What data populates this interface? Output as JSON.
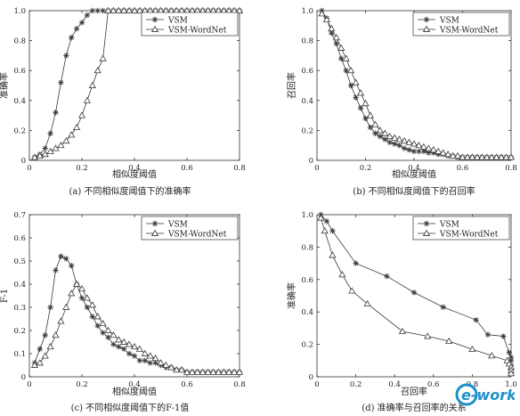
{
  "colors": {
    "vsm": "#3a3a3a",
    "wordnet": "#3a3a3a",
    "axis": "#333333",
    "watermark": "#1f8fc9"
  },
  "watermark": {
    "text": "e-works",
    "icon": "e-works-logo"
  },
  "chart_data": [
    {
      "type": "line",
      "caption": "(a) 不同相似度阈值下的准确率",
      "xlabel": "相似度阈值",
      "ylabel": "准确率",
      "xlim": [
        0,
        0.8
      ],
      "ylim": [
        0,
        1
      ],
      "xticks": [
        0,
        0.2,
        0.4,
        0.6,
        0.8
      ],
      "yticks": [
        0,
        0.2,
        0.4,
        0.6,
        0.8,
        1
      ],
      "xtick_labels": [
        "0",
        "0.2",
        "0.4",
        "0.6",
        "0.8"
      ],
      "ytick_labels": [
        "0",
        "0.2",
        "0.4",
        "0.6",
        "0.8",
        "1.0"
      ],
      "legend": "top-right",
      "series": [
        {
          "name": "VSM",
          "marker": "star",
          "x": [
            0.02,
            0.04,
            0.06,
            0.08,
            0.1,
            0.12,
            0.14,
            0.16,
            0.18,
            0.2,
            0.22,
            0.24,
            0.26,
            0.28,
            0.3,
            0.32,
            0.34,
            0.36,
            0.38,
            0.4,
            0.42,
            0.44,
            0.46,
            0.48,
            0.5,
            0.52,
            0.54,
            0.56,
            0.58,
            0.6,
            0.62,
            0.64,
            0.66,
            0.68,
            0.7,
            0.72,
            0.74,
            0.76,
            0.78,
            0.8
          ],
          "y": [
            0.02,
            0.04,
            0.08,
            0.18,
            0.32,
            0.52,
            0.7,
            0.82,
            0.88,
            0.92,
            0.97,
            1,
            1,
            1,
            1,
            1,
            1,
            1,
            1,
            1,
            1,
            1,
            1,
            1,
            1,
            1,
            1,
            1,
            1,
            1,
            1,
            1,
            1,
            1,
            1,
            1,
            1,
            1,
            1,
            1
          ]
        },
        {
          "name": "VSM-WordNet",
          "marker": "triangle",
          "x": [
            0.02,
            0.04,
            0.06,
            0.08,
            0.1,
            0.12,
            0.14,
            0.16,
            0.18,
            0.2,
            0.22,
            0.24,
            0.26,
            0.28,
            0.3,
            0.32,
            0.34,
            0.36,
            0.38,
            0.4,
            0.42,
            0.44,
            0.46,
            0.48,
            0.5,
            0.52,
            0.54,
            0.56,
            0.58,
            0.6,
            0.62,
            0.64,
            0.66,
            0.68,
            0.7,
            0.72,
            0.74,
            0.76,
            0.78,
            0.8
          ],
          "y": [
            0.02,
            0.03,
            0.04,
            0.06,
            0.08,
            0.1,
            0.13,
            0.17,
            0.22,
            0.3,
            0.4,
            0.5,
            0.6,
            0.68,
            1,
            1,
            1,
            1,
            1,
            1,
            1,
            1,
            1,
            1,
            1,
            1,
            1,
            1,
            1,
            1,
            1,
            1,
            1,
            1,
            1,
            1,
            1,
            1,
            1,
            1
          ]
        }
      ]
    },
    {
      "type": "line",
      "caption": "(b) 不同相似度阈值下的召回率",
      "xlabel": "相似度阈值",
      "ylabel": "召回率",
      "xlim": [
        0,
        0.8
      ],
      "ylim": [
        0,
        1
      ],
      "xticks": [
        0,
        0.2,
        0.4,
        0.6,
        0.8
      ],
      "yticks": [
        0,
        0.2,
        0.4,
        0.6,
        0.8,
        1
      ],
      "xtick_labels": [
        "0",
        "0.2",
        "0.4",
        "0.6",
        "0.8"
      ],
      "ytick_labels": [
        "0",
        "0.2",
        "0.4",
        "0.6",
        "0.8",
        "1.0"
      ],
      "legend": "top-right",
      "series": [
        {
          "name": "VSM",
          "marker": "star",
          "x": [
            0.02,
            0.04,
            0.06,
            0.08,
            0.1,
            0.12,
            0.14,
            0.16,
            0.18,
            0.2,
            0.22,
            0.24,
            0.26,
            0.28,
            0.3,
            0.32,
            0.34,
            0.36,
            0.38,
            0.4,
            0.42,
            0.44,
            0.46,
            0.48,
            0.5,
            0.52,
            0.54,
            0.56,
            0.58,
            0.6,
            0.62,
            0.64,
            0.66,
            0.68,
            0.7,
            0.72,
            0.74,
            0.76,
            0.78,
            0.8
          ],
          "y": [
            1,
            0.95,
            0.85,
            0.78,
            0.68,
            0.6,
            0.5,
            0.42,
            0.35,
            0.28,
            0.22,
            0.18,
            0.16,
            0.14,
            0.12,
            0.11,
            0.1,
            0.08,
            0.07,
            0.06,
            0.06,
            0.06,
            0.05,
            0.05,
            0.04,
            0.04,
            0.03,
            0.03,
            0.02,
            0.02,
            0.02,
            0.02,
            0.02,
            0.02,
            0.02,
            0.02,
            0.02,
            0.02,
            0.02,
            0.02
          ]
        },
        {
          "name": "VSM-WordNet",
          "marker": "triangle",
          "x": [
            0.02,
            0.04,
            0.06,
            0.08,
            0.1,
            0.12,
            0.14,
            0.16,
            0.18,
            0.2,
            0.22,
            0.24,
            0.26,
            0.28,
            0.3,
            0.32,
            0.34,
            0.36,
            0.38,
            0.4,
            0.42,
            0.44,
            0.46,
            0.48,
            0.5,
            0.52,
            0.54,
            0.56,
            0.58,
            0.6,
            0.62,
            0.64,
            0.66,
            0.68,
            0.7,
            0.72,
            0.74,
            0.76,
            0.78,
            0.8
          ],
          "y": [
            0.98,
            0.94,
            0.88,
            0.82,
            0.75,
            0.68,
            0.6,
            0.52,
            0.45,
            0.38,
            0.3,
            0.24,
            0.2,
            0.18,
            0.16,
            0.15,
            0.14,
            0.13,
            0.12,
            0.11,
            0.1,
            0.09,
            0.08,
            0.07,
            0.06,
            0.05,
            0.04,
            0.03,
            0.03,
            0.02,
            0.02,
            0.02,
            0.02,
            0.02,
            0.02,
            0.02,
            0.02,
            0.02,
            0.02,
            0.02
          ]
        }
      ]
    },
    {
      "type": "line",
      "caption": "(c) 不同相似度阈值下的F-1值",
      "xlabel": "相似度阈值",
      "ylabel": "F-1",
      "xlim": [
        0,
        0.8
      ],
      "ylim": [
        0,
        0.7
      ],
      "xticks": [
        0,
        0.2,
        0.4,
        0.6,
        0.8
      ],
      "yticks": [
        0,
        0.1,
        0.2,
        0.3,
        0.4,
        0.5,
        0.6,
        0.7
      ],
      "xtick_labels": [
        "0",
        "0.2",
        "0.4",
        "0.6",
        "0.8"
      ],
      "ytick_labels": [
        "0",
        "0.1",
        "0.2",
        "0.3",
        "0.4",
        "0.5",
        "0.6",
        "0.7"
      ],
      "legend": "top-right",
      "series": [
        {
          "name": "VSM",
          "marker": "star",
          "x": [
            0.02,
            0.04,
            0.06,
            0.08,
            0.1,
            0.12,
            0.14,
            0.16,
            0.18,
            0.2,
            0.22,
            0.24,
            0.26,
            0.28,
            0.3,
            0.32,
            0.34,
            0.36,
            0.38,
            0.4,
            0.42,
            0.44,
            0.46,
            0.48,
            0.5,
            0.52,
            0.54,
            0.56,
            0.58,
            0.6,
            0.62,
            0.64,
            0.66,
            0.68,
            0.7,
            0.72,
            0.74,
            0.76,
            0.78,
            0.8
          ],
          "y": [
            0.06,
            0.12,
            0.18,
            0.3,
            0.46,
            0.52,
            0.51,
            0.48,
            0.4,
            0.34,
            0.3,
            0.26,
            0.22,
            0.19,
            0.17,
            0.14,
            0.13,
            0.12,
            0.1,
            0.09,
            0.07,
            0.07,
            0.06,
            0.06,
            0.05,
            0.04,
            0.04,
            0.03,
            0.03,
            0.02,
            0.02,
            0.02,
            0.02,
            0.02,
            0.02,
            0.02,
            0.02,
            0.02,
            0.02,
            0.02
          ]
        },
        {
          "name": "VSM-WordNet",
          "marker": "triangle",
          "x": [
            0.02,
            0.04,
            0.06,
            0.08,
            0.1,
            0.12,
            0.14,
            0.16,
            0.18,
            0.2,
            0.22,
            0.24,
            0.26,
            0.28,
            0.3,
            0.32,
            0.34,
            0.36,
            0.38,
            0.4,
            0.42,
            0.44,
            0.46,
            0.48,
            0.5,
            0.52,
            0.54,
            0.56,
            0.58,
            0.6,
            0.62,
            0.64,
            0.66,
            0.68,
            0.7,
            0.72,
            0.74,
            0.76,
            0.78,
            0.8
          ],
          "y": [
            0.05,
            0.06,
            0.09,
            0.13,
            0.18,
            0.24,
            0.3,
            0.36,
            0.4,
            0.38,
            0.34,
            0.31,
            0.26,
            0.23,
            0.2,
            0.18,
            0.16,
            0.15,
            0.14,
            0.13,
            0.12,
            0.1,
            0.09,
            0.08,
            0.06,
            0.05,
            0.04,
            0.03,
            0.03,
            0.02,
            0.02,
            0.02,
            0.02,
            0.02,
            0.02,
            0.02,
            0.02,
            0.02,
            0.02,
            0.02
          ]
        }
      ]
    },
    {
      "type": "line",
      "caption": "(d) 准确率与召回率的关系",
      "xlabel": "召回率",
      "ylabel": "准确率",
      "xlim": [
        0,
        1
      ],
      "ylim": [
        0,
        1
      ],
      "xticks": [
        0,
        0.2,
        0.4,
        0.6,
        0.8,
        1
      ],
      "yticks": [
        0,
        0.2,
        0.4,
        0.6,
        0.8,
        1
      ],
      "xtick_labels": [
        "0",
        "0.2",
        "0.4",
        "0.6",
        "0.8",
        "1.0"
      ],
      "ytick_labels": [
        "0",
        "0.2",
        "0.4",
        "0.6",
        "0.8",
        "1.0"
      ],
      "legend": "top-right",
      "series": [
        {
          "name": "VSM",
          "marker": "star",
          "x": [
            0.02,
            0.05,
            0.08,
            0.2,
            0.36,
            0.5,
            0.65,
            0.82,
            0.88,
            0.96,
            0.99,
            1,
            1,
            1,
            1,
            1
          ],
          "y": [
            1,
            0.96,
            0.9,
            0.7,
            0.62,
            0.52,
            0.43,
            0.35,
            0.26,
            0.25,
            0.15,
            0.12,
            0.1,
            0.07,
            0.05,
            0.03
          ]
        },
        {
          "name": "VSM-WordNet",
          "marker": "triangle",
          "x": [
            0.02,
            0.04,
            0.08,
            0.13,
            0.18,
            0.26,
            0.44,
            0.57,
            0.68,
            0.8,
            0.9,
            0.98,
            0.99,
            1,
            1,
            1
          ],
          "y": [
            0.98,
            0.9,
            0.75,
            0.63,
            0.53,
            0.45,
            0.28,
            0.25,
            0.22,
            0.17,
            0.13,
            0.1,
            0.08,
            0.06,
            0.04,
            0.02
          ]
        }
      ]
    }
  ]
}
